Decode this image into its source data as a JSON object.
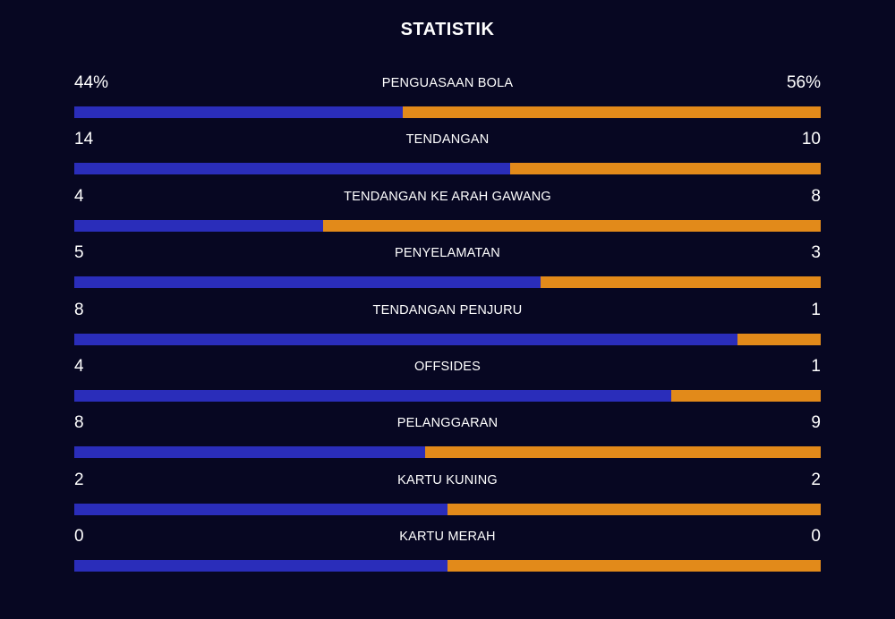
{
  "title": "STATISTIK",
  "colors": {
    "background": "#070722",
    "home": "#2a2dba",
    "away": "#e28a1a"
  },
  "stats": [
    {
      "label": "PENGUASAAN BOLA",
      "home": "44%",
      "away": "56%",
      "home_value": 44,
      "away_value": 56
    },
    {
      "label": "TENDANGAN",
      "home": "14",
      "away": "10",
      "home_value": 14,
      "away_value": 10
    },
    {
      "label": "TENDANGAN KE ARAH GAWANG",
      "home": "4",
      "away": "8",
      "home_value": 4,
      "away_value": 8
    },
    {
      "label": "PENYELAMATAN",
      "home": "5",
      "away": "3",
      "home_value": 5,
      "away_value": 3
    },
    {
      "label": "TENDANGAN PENJURU",
      "home": "8",
      "away": "1",
      "home_value": 8,
      "away_value": 1
    },
    {
      "label": "OFFSIDES",
      "home": "4",
      "away": "1",
      "home_value": 4,
      "away_value": 1
    },
    {
      "label": "PELANGGARAN",
      "home": "8",
      "away": "9",
      "home_value": 8,
      "away_value": 9
    },
    {
      "label": "KARTU KUNING",
      "home": "2",
      "away": "2",
      "home_value": 2,
      "away_value": 2
    },
    {
      "label": "KARTU MERAH",
      "home": "0",
      "away": "0",
      "home_value": 0,
      "away_value": 0
    }
  ]
}
